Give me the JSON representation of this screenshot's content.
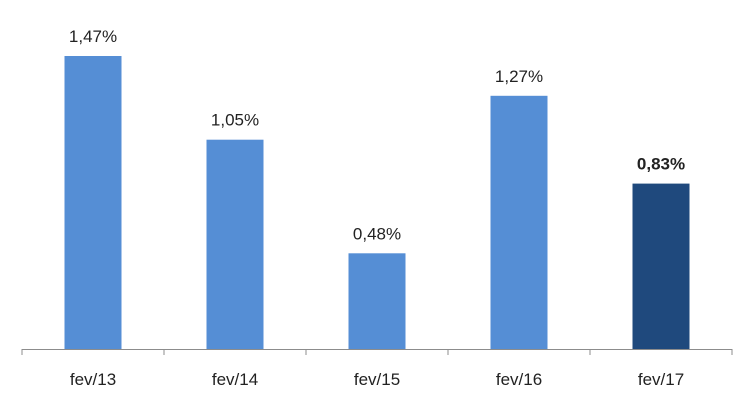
{
  "chart_data": {
    "type": "bar",
    "categories": [
      "fev/13",
      "fev/14",
      "fev/15",
      "fev/16",
      "fev/17"
    ],
    "values": [
      1.47,
      1.05,
      0.48,
      1.27,
      0.83
    ],
    "data_labels": [
      "1,47%",
      "1,05%",
      "0,48%",
      "1,27%",
      "0,83%"
    ],
    "highlighted_index": 4,
    "title": "",
    "xlabel": "",
    "ylabel": "",
    "ylim": [
      0,
      1.5
    ],
    "grid": false,
    "legend": "none",
    "colors": {
      "bar": "#558ED5",
      "highlight_bar": "#1F497D",
      "axis": "#8C8C8C",
      "text": "#222222"
    }
  }
}
